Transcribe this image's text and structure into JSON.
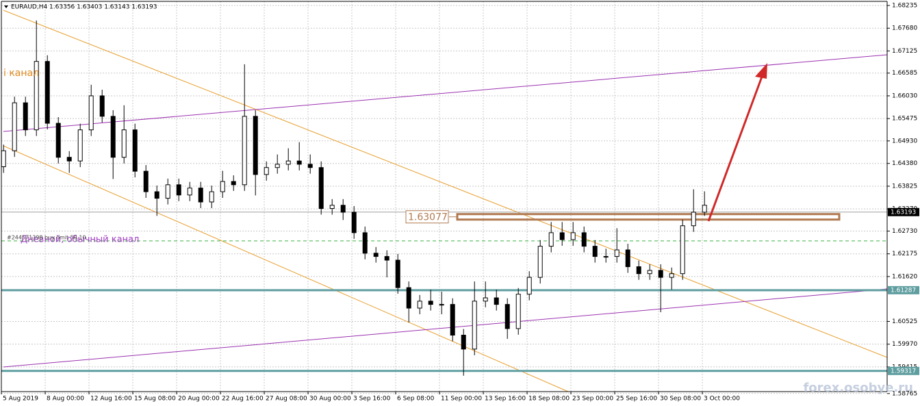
{
  "chart_data": {
    "type": "candlestick",
    "title": "EURAUD,H4  1.63356 1.63403 1.63143 1.63193",
    "annotations": [
      "Дневной, обычный канал",
      "і канал",
      "#244571398 buy limit 50.10"
    ],
    "watermark": "forex.osobye.ru",
    "open": [
      1.643,
      1.6469,
      1.6586,
      1.652,
      1.6687,
      1.6536,
      1.6453,
      1.6444,
      1.652,
      1.6603,
      1.6553,
      1.6453,
      1.652,
      1.6419,
      1.6369,
      1.6353,
      1.6386,
      1.6361,
      1.6378,
      1.6344,
      1.6369,
      1.6394,
      1.6386,
      1.6553,
      1.6411,
      1.6428,
      1.6436,
      1.6444,
      1.6436,
      1.6428,
      1.6328,
      1.6336,
      1.6319,
      1.6269,
      1.6219,
      1.6211,
      1.6202,
      1.6135,
      1.6085,
      1.6102,
      1.6094,
      1.6094,
      1.6019,
      1.5985,
      1.6102,
      1.611,
      1.6094,
      1.6035,
      1.6119,
      1.616,
      1.6236,
      1.6269,
      1.6252,
      1.6269,
      1.6236,
      1.6211,
      1.6211,
      1.6227,
      1.6186,
      1.6169,
      1.6177,
      1.616,
      1.6169,
      1.6286,
      1.6319
    ],
    "high": [
      1.6484,
      1.6601,
      1.6601,
      1.6787,
      1.6702,
      1.6551,
      1.6468,
      1.6535,
      1.663,
      1.6618,
      1.6568,
      1.658,
      1.6535,
      1.6434,
      1.6384,
      1.6401,
      1.6401,
      1.6393,
      1.6393,
      1.6384,
      1.642,
      1.6409,
      1.668,
      1.6568,
      1.6443,
      1.646,
      1.6475,
      1.649,
      1.646,
      1.6443,
      1.6351,
      1.6351,
      1.6334,
      1.6284,
      1.6234,
      1.6226,
      1.6217,
      1.615,
      1.6117,
      1.613,
      1.6125,
      1.6109,
      1.6034,
      1.615,
      1.615,
      1.613,
      1.6109,
      1.6134,
      1.6175,
      1.6251,
      1.6295,
      1.6295,
      1.6295,
      1.6284,
      1.6251,
      1.623,
      1.628,
      1.6242,
      1.6201,
      1.6192,
      1.6192,
      1.6184,
      1.6301,
      1.6375,
      1.637
    ],
    "low": [
      1.6415,
      1.6454,
      1.6505,
      1.6505,
      1.6521,
      1.6438,
      1.6415,
      1.6429,
      1.6505,
      1.6538,
      1.64,
      1.6438,
      1.6404,
      1.6354,
      1.631,
      1.6338,
      1.6346,
      1.6346,
      1.6329,
      1.6329,
      1.6354,
      1.6371,
      1.6371,
      1.636,
      1.6396,
      1.6413,
      1.6421,
      1.6421,
      1.6413,
      1.6313,
      1.6313,
      1.63,
      1.6254,
      1.6204,
      1.6196,
      1.616,
      1.612,
      1.605,
      1.607,
      1.6079,
      1.607,
      1.6004,
      1.592,
      1.597,
      1.6087,
      1.6079,
      1.601,
      1.602,
      1.6104,
      1.6145,
      1.6221,
      1.6237,
      1.6237,
      1.6221,
      1.6196,
      1.6196,
      1.6196,
      1.6171,
      1.6154,
      1.6154,
      1.6075,
      1.613,
      1.6154,
      1.6271,
      1.631
    ],
    "close": [
      1.6469,
      1.6586,
      1.652,
      1.6687,
      1.6536,
      1.6453,
      1.6444,
      1.652,
      1.6603,
      1.6553,
      1.6453,
      1.652,
      1.6419,
      1.6369,
      1.6353,
      1.6386,
      1.6361,
      1.6378,
      1.6344,
      1.6369,
      1.6394,
      1.6386,
      1.6553,
      1.6411,
      1.6428,
      1.6436,
      1.6444,
      1.6436,
      1.6428,
      1.6328,
      1.6336,
      1.6319,
      1.6269,
      1.6219,
      1.6211,
      1.6202,
      1.6135,
      1.6085,
      1.6102,
      1.6094,
      1.6094,
      1.6019,
      1.5985,
      1.6102,
      1.611,
      1.6094,
      1.6035,
      1.6119,
      1.616,
      1.6236,
      1.6269,
      1.6252,
      1.6269,
      1.6236,
      1.6211,
      1.6211,
      1.6227,
      1.6186,
      1.6169,
      1.6177,
      1.616,
      1.6169,
      1.6286,
      1.6319,
      1.6336
    ],
    "up_color": "#ffffff",
    "down_color": "#000000",
    "wick_color": "#000000",
    "xlim": [
      0,
      80.875
    ],
    "xticks": [
      {
        "value": 0,
        "label": "5 Aug 2019"
      },
      {
        "value": 4,
        "label": "8 Aug 00:00"
      },
      {
        "value": 8,
        "label": "12 Aug 16:00"
      },
      {
        "value": 12,
        "label": "15 Aug 08:00"
      },
      {
        "value": 16,
        "label": "20 Aug 00:00"
      },
      {
        "value": 20,
        "label": "22 Aug 16:00"
      },
      {
        "value": 24,
        "label": "27 Aug 08:00"
      },
      {
        "value": 28,
        "label": "30 Aug 00:00"
      },
      {
        "value": 32,
        "label": "3 Sep 16:00"
      },
      {
        "value": 36,
        "label": "6 Sep 08:00"
      },
      {
        "value": 40,
        "label": "11 Sep 00:00"
      },
      {
        "value": 44,
        "label": "13 Sep 16:00"
      },
      {
        "value": 48,
        "label": "18 Sep 08:00"
      },
      {
        "value": 52,
        "label": "23 Sep 00:00"
      },
      {
        "value": 56,
        "label": "25 Sep 16:00"
      },
      {
        "value": 60,
        "label": "30 Sep 08:00"
      },
      {
        "value": 64,
        "label": "3 Oct 00:00"
      }
    ],
    "ylim": [
      1.58735,
      1.68335
    ],
    "yticks": [
      1.68235,
      {
        "value": 1.6768,
        "label": "1.67680"
      },
      1.67125,
      1.66585,
      {
        "value": 1.6603,
        "label": "1.66030"
      },
      1.65475,
      {
        "value": 1.6493,
        "label": "1.64930"
      },
      {
        "value": 1.6438,
        "label": "1.64380"
      },
      1.63825,
      {
        "value": 1.6327,
        "label": "1.63270"
      },
      {
        "value": 1.6273,
        "label": "1.62730"
      },
      1.62175,
      {
        "value": 1.6162,
        "label": "1.61620"
      },
      1.60525,
      {
        "value": 1.5997,
        "label": "1.59970"
      },
      1.59415,
      1.58765
    ],
    "grid": true,
    "current_price": 1.63193,
    "levels": [
      1.61287,
      1.59317
    ],
    "level_color": "#5f9ea0",
    "zone": 1.63077,
    "zone_color": "#b07a50",
    "order_level": 1.6249,
    "order_color": "#3cb043"
  }
}
